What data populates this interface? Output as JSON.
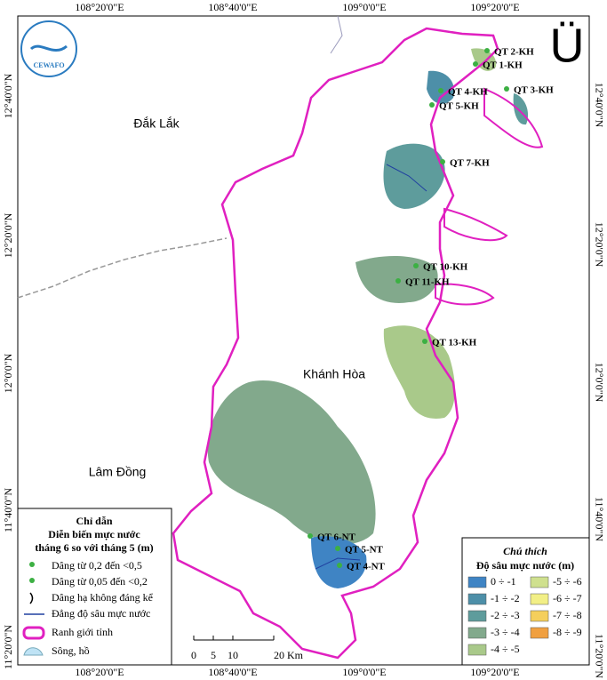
{
  "coordinates": {
    "top": [
      "108°20'0\"E",
      "108°40'0\"E",
      "109°0'0\"E",
      "109°20'0\"E"
    ],
    "bottom": [
      "108°20'0\"E",
      "108°40'0\"E",
      "109°0'0\"E",
      "109°20'0\"E"
    ],
    "left": [
      "12°40'0\"N",
      "12°20'0\"N",
      "12°0'0\"N",
      "11°40'0\"N",
      "11°20'0\"N"
    ],
    "right": [
      "12°40'0\"N",
      "12°20'0\"N",
      "12°0'0\"N",
      "11°40'0\"N",
      "11°20'0\"N"
    ]
  },
  "north_arrow": "Ü",
  "logo": "CEWAFO",
  "regions": [
    "Đắk Lắk",
    "Khánh Hòa",
    "Lâm Đồng"
  ],
  "stations": [
    "QT 2-KH",
    "QT 1-KH",
    "QT 4-KH",
    "QT 3-KH",
    "QT 5-KH",
    "QT 7-KH",
    "QT 10-KH",
    "QT 11-KH",
    "QT 13-KH",
    "QT 6-NT",
    "QT 5-NT",
    "QT 4-NT"
  ],
  "guide": {
    "title": "Chỉ dẫn",
    "subtitle": "Diễn biến mực nước",
    "period": "tháng 6 so với tháng 5 (m)",
    "items": [
      "Dâng từ 0,2 đến <0,5",
      "Dâng từ 0,05 đến <0,2",
      "Dâng hạ không đáng kể",
      "Đẳng độ sâu mực nước",
      "Ranh giới tỉnh",
      "Sông, hồ"
    ]
  },
  "scale": [
    "0",
    "5",
    "10",
    "20 Km"
  ],
  "key": {
    "title": "Chú thích",
    "subtitle": "Độ sâu mực nước (m)",
    "items": [
      {
        "label": "0 ÷ -1",
        "color": "#3f84c4"
      },
      {
        "label": "-1 ÷ -2",
        "color": "#4d8fa8"
      },
      {
        "label": "-2 ÷ -3",
        "color": "#5e9c9c"
      },
      {
        "label": "-3 ÷ -4",
        "color": "#82a98c"
      },
      {
        "label": "-4 ÷ -5",
        "color": "#a9c98a"
      },
      {
        "label": "-5 ÷ -6",
        "color": "#cfe08e"
      },
      {
        "label": "-6 ÷ -7",
        "color": "#f2ef86"
      },
      {
        "label": "-7 ÷ -8",
        "color": "#f5cf5c"
      },
      {
        "label": "-8 ÷ -9",
        "color": "#f0a040"
      }
    ]
  }
}
